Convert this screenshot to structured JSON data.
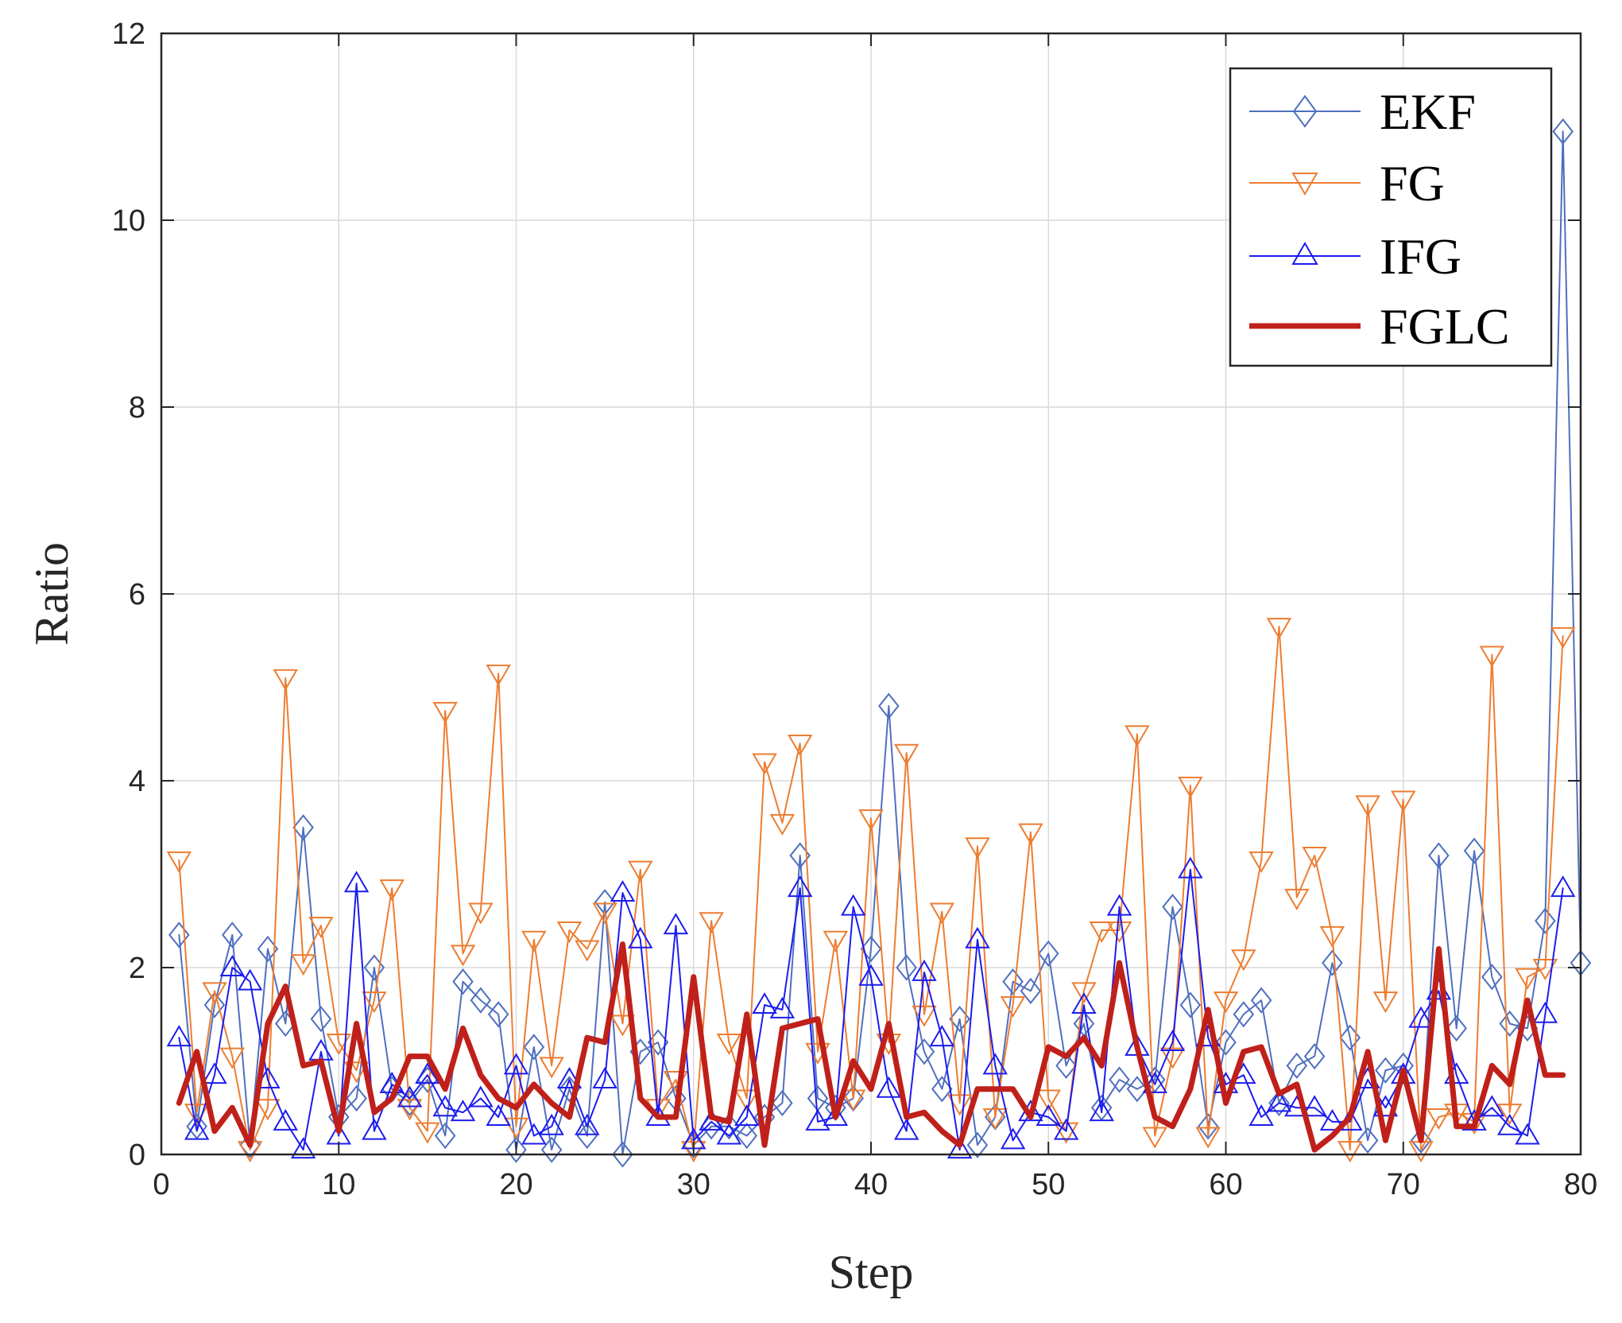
{
  "chart_data": {
    "type": "line",
    "title": "",
    "xlabel": "Step",
    "ylabel": "Ratio",
    "xlim": [
      0,
      80
    ],
    "ylim": [
      0,
      12
    ],
    "xticks": [
      0,
      10,
      20,
      30,
      40,
      50,
      60,
      70,
      80
    ],
    "yticks": [
      0,
      2,
      4,
      6,
      8,
      10,
      12
    ],
    "grid": true,
    "legend_position": "top-right",
    "colors": {
      "ekf": "#4f6fbf",
      "fg": "#ed7d31",
      "ifg": "#1c1cf0",
      "fglc": "#c0201a",
      "axis": "#262626",
      "grid": "#d9d9d9"
    },
    "series": [
      {
        "name": "EKF",
        "marker": "diamond",
        "color": "#4f6fbf",
        "linewidth": 2,
        "x": [
          1,
          2,
          3,
          4,
          5,
          6,
          7,
          8,
          9,
          10,
          11,
          12,
          13,
          14,
          15,
          16,
          17,
          18,
          19,
          20,
          21,
          22,
          23,
          24,
          25,
          26,
          27,
          28,
          29,
          30,
          31,
          32,
          33,
          34,
          35,
          36,
          37,
          38,
          39,
          40,
          41,
          42,
          43,
          44,
          45,
          46,
          47,
          48,
          49,
          50,
          51,
          52,
          53,
          54,
          55,
          56,
          57,
          58,
          59,
          60,
          61,
          62,
          63,
          64,
          65,
          66,
          67,
          68,
          69,
          70,
          71,
          72,
          73,
          74,
          75,
          76,
          77,
          78,
          79,
          80
        ],
        "values": [
          2.35,
          0.3,
          1.6,
          2.35,
          0.1,
          2.2,
          1.4,
          3.5,
          1.45,
          0.4,
          0.6,
          2.0,
          0.7,
          0.55,
          0.8,
          0.2,
          1.85,
          1.65,
          1.5,
          0.05,
          1.15,
          0.05,
          0.7,
          0.2,
          2.7,
          0.0,
          1.1,
          1.2,
          0.6,
          0.1,
          0.3,
          0.3,
          0.2,
          0.4,
          0.55,
          3.2,
          0.6,
          0.5,
          0.6,
          2.2,
          4.8,
          2.0,
          1.1,
          0.7,
          1.45,
          0.1,
          0.4,
          1.85,
          1.75,
          2.15,
          0.95,
          1.4,
          0.5,
          0.8,
          0.7,
          0.8,
          2.65,
          1.6,
          0.3,
          1.2,
          1.5,
          1.65,
          0.55,
          0.95,
          1.05,
          2.05,
          1.25,
          0.15,
          0.9,
          0.95,
          0.15,
          3.2,
          1.35,
          3.25,
          1.9,
          1.4,
          1.35,
          2.5,
          10.95,
          2.05
        ]
      },
      {
        "name": "FG",
        "marker": "triangle-down",
        "color": "#ed7d31",
        "linewidth": 2,
        "x": [
          1,
          2,
          3,
          4,
          5,
          6,
          7,
          8,
          9,
          10,
          11,
          12,
          13,
          14,
          15,
          16,
          17,
          18,
          19,
          20,
          21,
          22,
          23,
          24,
          25,
          26,
          27,
          28,
          29,
          30,
          31,
          32,
          33,
          34,
          35,
          36,
          37,
          38,
          39,
          40,
          41,
          42,
          43,
          44,
          45,
          46,
          47,
          48,
          49,
          50,
          51,
          52,
          53,
          54,
          55,
          56,
          57,
          58,
          59,
          60,
          61,
          62,
          63,
          64,
          65,
          66,
          67,
          68,
          69,
          70,
          71,
          72,
          73,
          74,
          75,
          76,
          77,
          78,
          79
        ],
        "values": [
          3.15,
          0.45,
          1.75,
          1.05,
          0.05,
          0.5,
          5.1,
          2.05,
          2.45,
          1.2,
          0.9,
          1.65,
          2.85,
          0.5,
          0.25,
          4.75,
          2.15,
          2.6,
          5.15,
          0.3,
          2.3,
          0.95,
          2.4,
          2.2,
          2.6,
          1.4,
          3.05,
          0.5,
          0.8,
          0.05,
          2.5,
          1.2,
          0.6,
          4.2,
          3.55,
          4.4,
          1.1,
          2.3,
          0.6,
          3.6,
          1.2,
          4.3,
          1.5,
          2.6,
          0.55,
          3.3,
          0.4,
          1.6,
          3.45,
          0.6,
          0.25,
          1.75,
          2.4,
          2.4,
          4.5,
          0.2,
          1.05,
          3.95,
          0.2,
          1.65,
          2.1,
          3.15,
          5.65,
          2.75,
          3.2,
          2.35,
          0.05,
          3.75,
          1.65,
          3.8,
          0.05,
          0.4,
          0.45,
          0.35,
          5.35,
          0.45,
          1.9,
          2.0,
          5.55
        ]
      },
      {
        "name": "IFG",
        "marker": "triangle-up",
        "color": "#1c1cf0",
        "linewidth": 2,
        "x": [
          1,
          2,
          3,
          4,
          5,
          6,
          7,
          8,
          9,
          10,
          11,
          12,
          13,
          14,
          15,
          16,
          17,
          18,
          19,
          20,
          21,
          22,
          23,
          24,
          25,
          26,
          27,
          28,
          29,
          30,
          31,
          32,
          33,
          34,
          35,
          36,
          37,
          38,
          39,
          40,
          41,
          42,
          43,
          44,
          45,
          46,
          47,
          48,
          49,
          50,
          51,
          52,
          53,
          54,
          55,
          56,
          57,
          58,
          59,
          60,
          61,
          62,
          63,
          64,
          65,
          66,
          67,
          68,
          69,
          70,
          71,
          72,
          73,
          74,
          75,
          76,
          77,
          78,
          79
        ],
        "values": [
          1.25,
          0.25,
          0.85,
          2.0,
          1.85,
          0.8,
          0.35,
          0.05,
          1.1,
          0.2,
          2.9,
          0.25,
          0.75,
          0.6,
          0.85,
          0.5,
          0.45,
          0.6,
          0.4,
          0.95,
          0.2,
          0.3,
          0.8,
          0.3,
          0.8,
          2.8,
          2.3,
          0.4,
          2.45,
          0.15,
          0.35,
          0.2,
          0.4,
          1.6,
          1.55,
          2.85,
          0.35,
          0.4,
          2.65,
          1.9,
          0.7,
          0.25,
          1.95,
          1.25,
          0.05,
          2.3,
          0.95,
          0.15,
          0.45,
          0.4,
          0.25,
          1.6,
          0.45,
          2.65,
          1.15,
          0.75,
          1.2,
          3.05,
          1.25,
          0.75,
          0.85,
          0.4,
          0.55,
          0.5,
          0.5,
          0.35,
          0.35,
          0.8,
          0.5,
          0.85,
          1.45,
          1.75,
          0.85,
          0.35,
          0.5,
          0.3,
          0.2,
          1.5,
          2.85
        ]
      },
      {
        "name": "FGLC",
        "marker": "none",
        "color": "#c0201a",
        "linewidth": 7,
        "x": [
          1,
          2,
          3,
          4,
          5,
          6,
          7,
          8,
          9,
          10,
          11,
          12,
          13,
          14,
          15,
          16,
          17,
          18,
          19,
          20,
          21,
          22,
          23,
          24,
          25,
          26,
          27,
          28,
          29,
          30,
          31,
          32,
          33,
          34,
          35,
          36,
          37,
          38,
          39,
          40,
          41,
          42,
          43,
          44,
          45,
          46,
          47,
          48,
          49,
          50,
          51,
          52,
          53,
          54,
          55,
          56,
          57,
          58,
          59,
          60,
          61,
          62,
          63,
          64,
          65,
          66,
          67,
          68,
          69,
          70,
          71,
          72,
          73,
          74,
          75,
          76,
          77,
          78,
          79
        ],
        "values": [
          0.55,
          1.1,
          0.25,
          0.5,
          0.1,
          1.4,
          1.8,
          0.95,
          1.0,
          0.25,
          1.4,
          0.45,
          0.6,
          1.05,
          1.05,
          0.7,
          1.35,
          0.85,
          0.6,
          0.5,
          0.75,
          0.55,
          0.4,
          1.25,
          1.2,
          2.25,
          0.6,
          0.4,
          0.4,
          1.9,
          0.4,
          0.35,
          1.5,
          0.1,
          1.35,
          1.4,
          1.45,
          0.4,
          1.0,
          0.7,
          1.4,
          0.4,
          0.45,
          0.25,
          0.1,
          0.7,
          0.7,
          0.7,
          0.4,
          1.15,
          1.05,
          1.25,
          0.95,
          2.05,
          1.15,
          0.4,
          0.3,
          0.7,
          1.55,
          0.55,
          1.1,
          1.15,
          0.65,
          0.75,
          0.05,
          0.2,
          0.4,
          1.1,
          0.15,
          0.9,
          0.15,
          2.2,
          0.3,
          0.3,
          0.95,
          0.75,
          1.65,
          0.85,
          0.85
        ]
      }
    ]
  }
}
